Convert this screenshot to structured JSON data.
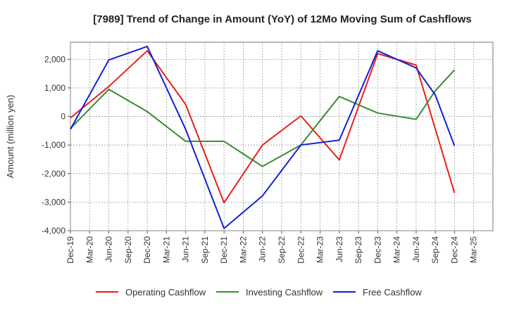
{
  "chart_data": {
    "type": "line",
    "title": "[7989]  Trend of Change in Amount (YoY) of 12Mo Moving Sum of Cashflows",
    "xlabel": "",
    "ylabel": "Amount (million yen)",
    "ylim": [
      -4000,
      2600
    ],
    "yticks": [
      2000,
      1000,
      0,
      -1000,
      -2000,
      -3000,
      -4000
    ],
    "ytick_labels": [
      "2,000",
      "1,000",
      "0",
      "-1,000",
      "-2,000",
      "-3,000",
      "-4,000"
    ],
    "categories": [
      "Dec-19",
      "Mar-20",
      "Jun-20",
      "Sep-20",
      "Dec-20",
      "Mar-21",
      "Jun-21",
      "Sep-21",
      "Dec-21",
      "Mar-22",
      "Jun-22",
      "Sep-22",
      "Dec-22",
      "Mar-23",
      "Jun-23",
      "Sep-23",
      "Dec-23",
      "Mar-24",
      "Jun-24",
      "Sep-24",
      "Dec-24",
      "Mar-25"
    ],
    "grid": true,
    "legend_position": "bottom",
    "series": [
      {
        "name": "Operating Cashflow",
        "color": "#e8201b",
        "points": [
          [
            0,
            -50
          ],
          [
            2,
            1050
          ],
          [
            4,
            2300
          ],
          [
            6,
            420
          ],
          [
            8,
            -3020
          ],
          [
            10,
            -1000
          ],
          [
            12,
            20
          ],
          [
            14,
            -1520
          ],
          [
            16,
            2200
          ],
          [
            18,
            1800
          ],
          [
            20,
            -2680
          ]
        ]
      },
      {
        "name": "Investing Cashflow",
        "color": "#3a8c30",
        "points": [
          [
            0,
            -420
          ],
          [
            2,
            950
          ],
          [
            4,
            170
          ],
          [
            6,
            -870
          ],
          [
            8,
            -870
          ],
          [
            10,
            -1750
          ],
          [
            12,
            -1000
          ],
          [
            14,
            700
          ],
          [
            16,
            120
          ],
          [
            18,
            -100
          ],
          [
            19,
            900
          ],
          [
            20,
            1630
          ]
        ]
      },
      {
        "name": "Free Cashflow",
        "color": "#1320d6",
        "points": [
          [
            0,
            -450
          ],
          [
            2,
            1980
          ],
          [
            4,
            2450
          ],
          [
            6,
            -450
          ],
          [
            8,
            -3920
          ],
          [
            10,
            -2780
          ],
          [
            12,
            -1000
          ],
          [
            14,
            -830
          ],
          [
            16,
            2300
          ],
          [
            18,
            1700
          ],
          [
            19,
            750
          ],
          [
            20,
            -1030
          ]
        ]
      }
    ]
  }
}
